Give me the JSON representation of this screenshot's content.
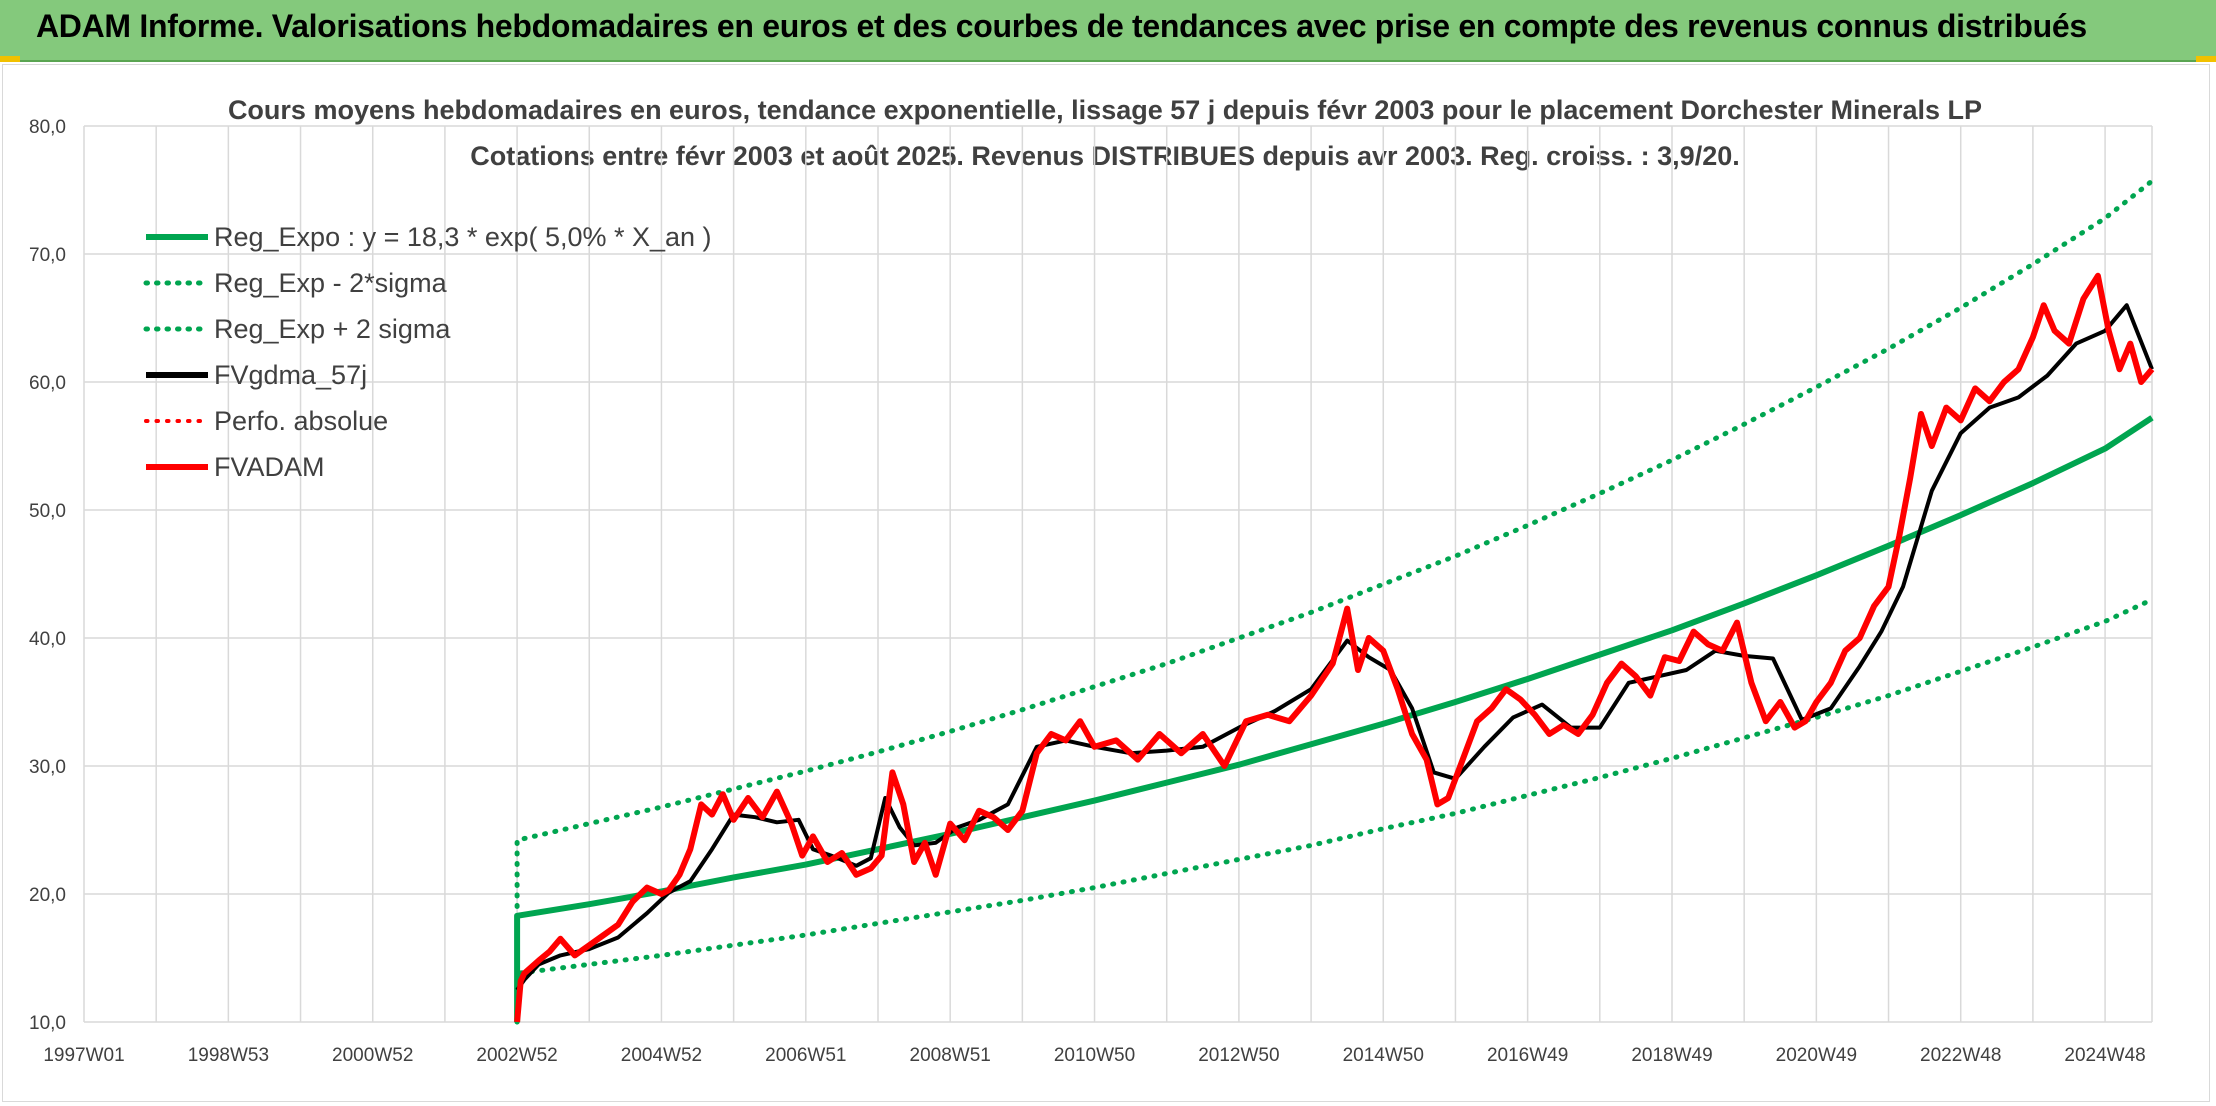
{
  "banner": {
    "title": "ADAM Informe. Valorisations hebdomadaires en euros et des courbes de tendances avec prise en compte des revenus connus distribués"
  },
  "colors": {
    "banner_bg": "#84c97c",
    "reg_green": "#00a550",
    "fv_black": "#000000",
    "adam_red": "#ff0000",
    "grid": "#d9d9d9",
    "title_text": "#404040"
  },
  "chart_data": {
    "type": "line",
    "title": "Cours moyens hebdomadaires en euros, tendance exponentielle, lissage 57 j depuis févr 2003 pour le placement Dorchester Minerals LP",
    "subtitle": "Cotations entre févr 2003 et août 2025. Revenus DISTRIBUES depuis avr 2003. Reg. croiss. : 3,9/20.",
    "xlabel": "",
    "ylabel": "",
    "ylim": [
      10,
      80
    ],
    "xlim": [
      1997.0,
      2025.65
    ],
    "grid": true,
    "legend_position": "top-left",
    "y_ticks": [
      "10,0",
      "20,0",
      "30,0",
      "40,0",
      "50,0",
      "60,0",
      "70,0",
      "80,0"
    ],
    "x_ticks": [
      {
        "label": "1997W01",
        "x": 1997.0
      },
      {
        "label": "1998W53",
        "x": 1999.0
      },
      {
        "label": "2000W52",
        "x": 2001.0
      },
      {
        "label": "2002W52",
        "x": 2003.0
      },
      {
        "label": "2004W52",
        "x": 2005.0
      },
      {
        "label": "2006W51",
        "x": 2007.0
      },
      {
        "label": "2008W51",
        "x": 2009.0
      },
      {
        "label": "2010W50",
        "x": 2011.0
      },
      {
        "label": "2012W50",
        "x": 2013.0
      },
      {
        "label": "2014W50",
        "x": 2015.0
      },
      {
        "label": "2016W49",
        "x": 2017.0
      },
      {
        "label": "2018W49",
        "x": 2019.0
      },
      {
        "label": "2020W49",
        "x": 2021.0
      },
      {
        "label": "2022W48",
        "x": 2023.0
      },
      {
        "label": "2024W48",
        "x": 2025.0
      }
    ],
    "series": [
      {
        "name": "Reg_Expo : y = 18,3 * exp( 5,0% *  X_an )",
        "color": "#00a550",
        "style": "solid",
        "width": 6,
        "x": [
          2003.0,
          2003.0,
          2004,
          2005,
          2006,
          2007,
          2008,
          2009,
          2010,
          2011,
          2012,
          2013,
          2014,
          2015,
          2016,
          2017,
          2018,
          2019,
          2020,
          2021,
          2022,
          2023,
          2024,
          2025,
          2025.65
        ],
        "values": [
          10.0,
          18.3,
          19.2,
          20.2,
          21.3,
          22.3,
          23.5,
          24.7,
          26.0,
          27.3,
          28.7,
          30.1,
          31.7,
          33.3,
          35.0,
          36.8,
          38.7,
          40.6,
          42.7,
          44.9,
          47.2,
          49.6,
          52.1,
          54.8,
          57.2
        ]
      },
      {
        "name": "Reg_Exp - 2*sigma",
        "color": "#00a550",
        "style": "dotted",
        "width": 5,
        "x": [
          2003.0,
          2003.0,
          2004,
          2005,
          2006,
          2007,
          2008,
          2009,
          2010,
          2011,
          2012,
          2013,
          2014,
          2015,
          2016,
          2017,
          2018,
          2019,
          2020,
          2021,
          2022,
          2023,
          2024,
          2025,
          2025.65
        ],
        "values": [
          10.0,
          13.8,
          14.5,
          15.2,
          16.0,
          16.8,
          17.7,
          18.6,
          19.5,
          20.5,
          21.6,
          22.7,
          23.8,
          25.1,
          26.3,
          27.7,
          29.1,
          30.6,
          32.2,
          33.8,
          35.5,
          37.4,
          39.3,
          41.3,
          43.0
        ]
      },
      {
        "name": "Reg_Exp + 2 sigma",
        "color": "#00a550",
        "style": "dotted",
        "width": 5,
        "x": [
          2003.0,
          2003.0,
          2004,
          2005,
          2006,
          2007,
          2008,
          2009,
          2010,
          2011,
          2012,
          2013,
          2014,
          2015,
          2016,
          2017,
          2018,
          2019,
          2020,
          2021,
          2022,
          2023,
          2024,
          2025,
          2025.65
        ],
        "values": [
          10.0,
          24.2,
          25.5,
          26.8,
          28.2,
          29.6,
          31.1,
          32.7,
          34.4,
          36.2,
          38.0,
          40.0,
          42.0,
          44.2,
          46.4,
          48.8,
          51.3,
          53.9,
          56.7,
          59.6,
          62.6,
          65.8,
          69.2,
          72.8,
          75.7
        ]
      },
      {
        "name": "FVgdma_57j",
        "color": "#000000",
        "style": "solid",
        "width": 4,
        "x": [
          2003.0,
          2003.1,
          2003.3,
          2003.6,
          2004.0,
          2004.4,
          2004.8,
          2005.1,
          2005.4,
          2005.7,
          2006.0,
          2006.3,
          2006.6,
          2006.9,
          2007.1,
          2007.4,
          2007.7,
          2007.9,
          2008.1,
          2008.3,
          2008.5,
          2008.8,
          2009.1,
          2009.4,
          2009.8,
          2010.2,
          2010.6,
          2011.0,
          2011.5,
          2012.0,
          2012.5,
          2013.0,
          2013.5,
          2014.0,
          2014.5,
          2014.8,
          2015.1,
          2015.4,
          2015.7,
          2016.0,
          2016.4,
          2016.8,
          2017.2,
          2017.6,
          2018.0,
          2018.4,
          2018.8,
          2019.2,
          2019.6,
          2020.0,
          2020.4,
          2020.8,
          2021.2,
          2021.6,
          2021.9,
          2022.2,
          2022.6,
          2023.0,
          2023.4,
          2023.8,
          2024.2,
          2024.6,
          2025.0,
          2025.3,
          2025.65
        ],
        "values": [
          12.5,
          13.3,
          14.5,
          15.2,
          15.7,
          16.6,
          18.5,
          20.1,
          21.0,
          23.5,
          26.2,
          26.0,
          25.6,
          25.8,
          23.5,
          22.9,
          22.2,
          22.8,
          27.5,
          25.2,
          23.8,
          24.0,
          25.2,
          25.8,
          27.0,
          31.5,
          32.0,
          31.5,
          31.0,
          31.2,
          31.5,
          33.0,
          34.3,
          36.0,
          39.8,
          38.5,
          37.5,
          34.5,
          29.5,
          29.0,
          31.5,
          33.8,
          34.8,
          33.0,
          33.0,
          36.5,
          37.0,
          37.5,
          39.0,
          38.6,
          38.4,
          33.6,
          34.5,
          37.8,
          40.5,
          44.0,
          51.5,
          56.0,
          58.0,
          58.8,
          60.5,
          63.0,
          64.0,
          66.0,
          61.0
        ]
      },
      {
        "name": "Perfo. absolue",
        "color": "#ff0000",
        "style": "dotted",
        "width": 3,
        "x": [],
        "values": []
      },
      {
        "name": "FVADAM",
        "color": "#ff0000",
        "style": "solid",
        "width": 6,
        "x": [
          2003.0,
          2003.05,
          2003.1,
          2003.2,
          2003.3,
          2003.45,
          2003.6,
          2003.8,
          2004.0,
          2004.2,
          2004.4,
          2004.6,
          2004.8,
          2005.0,
          2005.1,
          2005.25,
          2005.4,
          2005.55,
          2005.7,
          2005.85,
          2006.0,
          2006.2,
          2006.4,
          2006.6,
          2006.8,
          2006.95,
          2007.1,
          2007.3,
          2007.5,
          2007.7,
          2007.9,
          2008.05,
          2008.2,
          2008.35,
          2008.5,
          2008.65,
          2008.8,
          2009.0,
          2009.2,
          2009.4,
          2009.6,
          2009.8,
          2010.0,
          2010.2,
          2010.4,
          2010.6,
          2010.8,
          2011.0,
          2011.3,
          2011.6,
          2011.9,
          2012.2,
          2012.5,
          2012.8,
          2013.1,
          2013.4,
          2013.7,
          2014.0,
          2014.3,
          2014.5,
          2014.65,
          2014.8,
          2015.0,
          2015.2,
          2015.4,
          2015.6,
          2015.75,
          2015.9,
          2016.1,
          2016.3,
          2016.5,
          2016.7,
          2016.9,
          2017.1,
          2017.3,
          2017.5,
          2017.7,
          2017.9,
          2018.1,
          2018.3,
          2018.5,
          2018.7,
          2018.9,
          2019.1,
          2019.3,
          2019.5,
          2019.7,
          2019.9,
          2020.1,
          2020.3,
          2020.5,
          2020.7,
          2020.85,
          2021.0,
          2021.2,
          2021.4,
          2021.6,
          2021.8,
          2022.0,
          2022.15,
          2022.3,
          2022.45,
          2022.6,
          2022.8,
          2023.0,
          2023.2,
          2023.4,
          2023.6,
          2023.8,
          2024.0,
          2024.15,
          2024.3,
          2024.5,
          2024.7,
          2024.9,
          2025.05,
          2025.2,
          2025.35,
          2025.5,
          2025.65
        ],
        "values": [
          10.0,
          13.2,
          13.8,
          14.3,
          14.8,
          15.5,
          16.5,
          15.2,
          16.0,
          16.8,
          17.6,
          19.4,
          20.5,
          20.0,
          20.3,
          21.5,
          23.5,
          27.0,
          26.2,
          27.8,
          25.8,
          27.5,
          26.0,
          28.0,
          25.5,
          23.0,
          24.5,
          22.5,
          23.2,
          21.5,
          22.0,
          23.0,
          29.5,
          27.0,
          22.5,
          24.0,
          21.5,
          25.5,
          24.2,
          26.5,
          26.0,
          25.0,
          26.5,
          31.0,
          32.5,
          32.0,
          33.5,
          31.5,
          32.0,
          30.5,
          32.5,
          31.0,
          32.5,
          30.0,
          33.5,
          34.0,
          33.5,
          35.5,
          38.0,
          42.3,
          37.5,
          40.0,
          39.0,
          36.0,
          32.5,
          30.5,
          27.0,
          27.5,
          30.5,
          33.5,
          34.5,
          36.0,
          35.2,
          34.0,
          32.5,
          33.2,
          32.5,
          34.0,
          36.5,
          38.0,
          37.0,
          35.5,
          38.5,
          38.2,
          40.5,
          39.5,
          39.0,
          41.2,
          36.5,
          33.5,
          35.0,
          33.0,
          33.5,
          35.0,
          36.5,
          39.0,
          40.0,
          42.5,
          44.0,
          48.0,
          52.5,
          57.5,
          55.0,
          58.0,
          57.0,
          59.5,
          58.5,
          60.0,
          61.0,
          63.5,
          66.0,
          64.0,
          63.0,
          66.5,
          68.3,
          64.0,
          61.0,
          63.0,
          60.0,
          61.0
        ]
      }
    ]
  }
}
